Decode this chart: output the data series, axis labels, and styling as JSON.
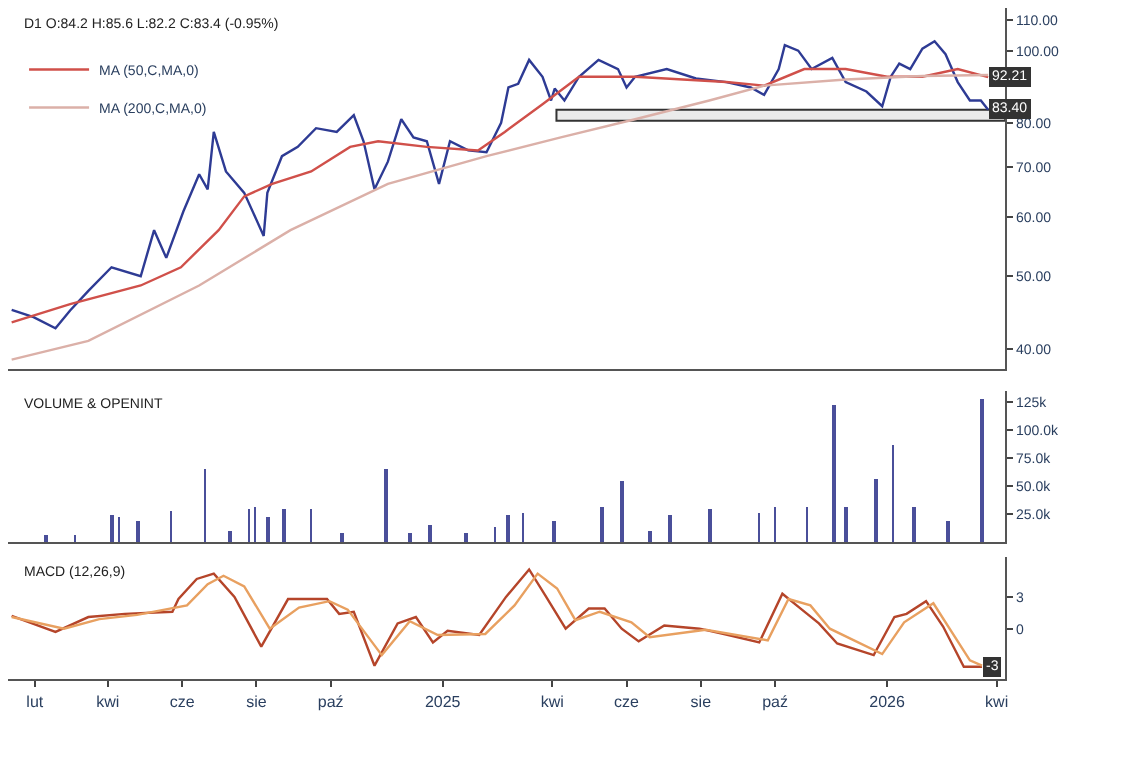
{
  "chart_data": [
    {
      "type": "line",
      "title": "D1 O:84.2 H:85.6 L:82.2 C:83.4 (-0.95%)",
      "log": true,
      "legend": "top left",
      "tick_labels": "y",
      "xlim": [
        "2024-01-10",
        "2026-04-08"
      ],
      "ylim": [
        37.6,
        114
      ],
      "yticks": [
        {
          "value": 40,
          "label": "40.00"
        },
        {
          "value": 50,
          "label": "50.00"
        },
        {
          "value": 60,
          "label": "60.00"
        },
        {
          "value": 70,
          "label": "70.00"
        },
        {
          "value": 80,
          "label": "80.00"
        },
        {
          "value": 100,
          "label": "100.00"
        },
        {
          "value": 110,
          "label": "110.00"
        }
      ],
      "bands": [
        {
          "axis": "y",
          "from": 80.6,
          "to": 83.4,
          "color": "#333333"
        }
      ],
      "annotations": [
        {
          "text": "92.21",
          "x": "2026-03-25",
          "y": 92.21
        },
        {
          "text": "83.40",
          "x": "2026-03-25",
          "y": 83.4
        }
      ],
      "series": [
        {
          "color": "#2e3b94",
          "x": [
            "2024-01-13",
            "2024-01-31",
            "2024-02-18",
            "2024-03-01",
            "2024-03-16",
            "2024-04-04",
            "2024-04-28",
            "2024-05-09",
            "2024-05-19",
            "2024-06-02",
            "2024-06-15",
            "2024-06-22",
            "2024-06-27",
            "2024-07-07",
            "2024-07-22",
            "2024-08-07",
            "2024-08-10",
            "2024-08-22",
            "2024-09-04",
            "2024-09-19",
            "2024-10-06",
            "2024-10-20",
            "2024-10-28",
            "2024-11-06",
            "2024-11-17",
            "2024-11-28",
            "2024-12-08",
            "2024-12-19",
            "2024-12-29",
            "2025-01-07",
            "2025-01-22",
            "2025-02-06",
            "2025-02-18",
            "2025-02-24",
            "2025-03-04",
            "2025-03-13",
            "2025-03-24",
            "2025-03-31",
            "2025-04-03",
            "2025-04-11",
            "2025-04-23",
            "2025-05-09",
            "2025-05-25",
            "2025-06-01",
            "2025-06-08",
            "2025-07-04",
            "2025-07-28",
            "2025-08-22",
            "2025-09-11",
            "2025-09-22",
            "2025-10-04",
            "2025-10-09",
            "2025-10-20",
            "2025-10-31",
            "2025-11-17",
            "2025-11-28",
            "2025-12-15",
            "2025-12-28",
            "2026-01-04",
            "2026-01-11",
            "2026-01-20",
            "2026-01-30",
            "2026-02-09",
            "2026-02-18",
            "2026-02-28",
            "2026-03-10",
            "2026-03-19",
            "2026-03-25"
          ],
          "values": [
            45.1,
            44.1,
            42.6,
            45.0,
            47.8,
            51.4,
            50.0,
            57.6,
            52.9,
            61.0,
            68.4,
            65.3,
            77.9,
            69.0,
            64.6,
            56.6,
            64.6,
            72.3,
            74.4,
            78.8,
            77.9,
            82.0,
            75.7,
            65.3,
            71.1,
            81.0,
            76.6,
            75.7,
            66.4,
            75.7,
            73.6,
            73.2,
            80.1,
            89.3,
            90.3,
            97.2,
            92.3,
            85.8,
            89.0,
            85.8,
            92.3,
            97.2,
            94.5,
            89.3,
            92.3,
            94.5,
            91.8,
            90.8,
            89.3,
            87.3,
            94.5,
            101.7,
            100.0,
            94.5,
            97.8,
            90.8,
            88.2,
            84.3,
            92.3,
            96.1,
            94.5,
            100.6,
            102.9,
            98.9,
            90.8,
            85.8,
            85.8,
            83.4
          ]
        },
        {
          "name": "MA (50,C,MA,0)",
          "color": "#d0504a",
          "x": [
            "2024-01-13",
            "2024-03-01",
            "2024-04-28",
            "2024-05-31",
            "2024-07-01",
            "2024-07-22",
            "2024-08-14",
            "2024-09-15",
            "2024-10-17",
            "2024-11-09",
            "2024-12-19",
            "2025-01-30",
            "2025-02-21",
            "2025-03-24",
            "2025-04-23",
            "2025-06-08",
            "2025-08-22",
            "2025-09-22",
            "2025-10-25",
            "2025-11-28",
            "2026-01-01",
            "2026-01-30",
            "2026-02-28",
            "2026-03-25"
          ],
          "values": [
            43.4,
            45.9,
            48.6,
            51.4,
            57.6,
            63.9,
            66.4,
            69.0,
            74.4,
            75.7,
            74.4,
            73.6,
            77.9,
            84.8,
            92.3,
            92.3,
            90.8,
            89.8,
            94.5,
            94.5,
            92.3,
            92.3,
            94.5,
            92.2
          ]
        },
        {
          "name": "MA (200,C,MA,0)",
          "color": "#dbb0a8",
          "x": [
            "2024-01-13",
            "2024-03-16",
            "2024-06-15",
            "2024-08-29",
            "2024-11-17",
            "2025-02-06",
            "2025-04-08",
            "2025-06-08",
            "2025-08-08",
            "2025-09-22",
            "2025-11-28",
            "2026-01-30",
            "2026-03-25"
          ],
          "values": [
            38.7,
            41.0,
            48.6,
            57.6,
            66.4,
            72.3,
            76.6,
            81.0,
            85.8,
            89.8,
            91.5,
            92.5,
            92.8
          ]
        }
      ]
    },
    {
      "type": "bar",
      "title": "VOLUME & OPENINT",
      "tick_labels": "y",
      "xlim": [
        "2024-01-10",
        "2026-04-08"
      ],
      "ylim": [
        0,
        135000
      ],
      "yticks": [
        {
          "value": 25000,
          "label": "25.0k"
        },
        {
          "value": 50000,
          "label": "50.0k"
        },
        {
          "value": 75000,
          "label": "75.0k"
        },
        {
          "value": 100000,
          "label": "100.0k"
        },
        {
          "value": 125000,
          "label": "125k"
        }
      ],
      "series": [
        {
          "color": "#4a4f9a",
          "x": [
            "2024-02-10",
            "2024-03-05",
            "2024-04-04",
            "2024-04-10",
            "2024-04-26",
            "2024-05-23",
            "2024-06-20",
            "2024-07-10",
            "2024-07-26",
            "2024-07-31",
            "2024-08-10",
            "2024-08-24",
            "2024-09-15",
            "2024-10-10",
            "2024-11-15",
            "2024-12-05",
            "2024-12-21",
            "2025-01-20",
            "2025-02-13",
            "2025-02-24",
            "2025-03-08",
            "2025-04-03",
            "2025-05-12",
            "2025-05-28",
            "2025-06-20",
            "2025-07-07",
            "2025-08-09",
            "2025-09-18",
            "2025-10-01",
            "2025-10-27",
            "2025-11-18",
            "2025-11-28",
            "2025-12-23",
            "2026-01-06",
            "2026-01-23",
            "2026-02-20",
            "2026-03-20"
          ],
          "values": [
            6000,
            7000,
            24000,
            22000,
            20000,
            29000,
            66000,
            10000,
            30000,
            32000,
            22000,
            30000,
            30000,
            9000,
            66000,
            8000,
            16000,
            9000,
            14000,
            24000,
            26000,
            20000,
            32000,
            54000,
            10000,
            25000,
            30000,
            26000,
            31000,
            32000,
            123000,
            32000,
            56000,
            87000,
            32000,
            20000,
            128000
          ]
        }
      ]
    },
    {
      "type": "line",
      "title": "MACD (12,26,9)",
      "xlim": [
        "2024-01-10",
        "2026-04-08"
      ],
      "ylim": [
        -4.8,
        6.8
      ],
      "yticks": [
        0,
        3
      ],
      "xticks": [
        {
          "value": "2024-02-01",
          "label": "lut"
        },
        {
          "value": "2024-04-01",
          "label": "kwi"
        },
        {
          "value": "2024-06-01",
          "label": "cze"
        },
        {
          "value": "2024-08-01",
          "label": "sie"
        },
        {
          "value": "2024-10-01",
          "label": "paź"
        },
        {
          "value": "2025-01-01",
          "label": "2025"
        },
        {
          "value": "2025-04-01",
          "label": "kwi"
        },
        {
          "value": "2025-06-01",
          "label": "cze"
        },
        {
          "value": "2025-08-01",
          "label": "sie"
        },
        {
          "value": "2025-10-01",
          "label": "paź"
        },
        {
          "value": "2026-01-01",
          "label": "2026"
        },
        {
          "value": "2026-04-01",
          "label": "kwi"
        }
      ],
      "annotations": [
        {
          "text": "-3",
          "x": "2026-03-20",
          "y": -3.6
        }
      ],
      "series": [
        {
          "color": "#b5452a",
          "x": [
            "2024-01-13",
            "2024-02-18",
            "2024-03-16",
            "2024-04-15",
            "2024-05-24",
            "2024-05-29",
            "2024-06-13",
            "2024-06-27",
            "2024-07-14",
            "2024-08-05",
            "2024-08-27",
            "2024-09-28",
            "2024-10-08",
            "2024-10-20",
            "2024-11-06",
            "2024-11-25",
            "2024-12-10",
            "2024-12-24",
            "2025-01-05",
            "2025-01-31",
            "2025-02-22",
            "2025-03-13",
            "2025-03-27",
            "2025-04-12",
            "2025-05-01",
            "2025-05-14",
            "2025-05-28",
            "2025-06-11",
            "2025-07-02",
            "2025-07-31",
            "2025-08-20",
            "2025-09-18",
            "2025-10-07",
            "2025-10-22",
            "2025-11-06",
            "2025-11-21",
            "2025-12-21",
            "2026-01-07",
            "2026-01-17",
            "2026-02-02",
            "2026-02-16",
            "2026-03-05",
            "2026-03-20"
          ],
          "values": [
            1.2,
            -0.3,
            1.1,
            1.4,
            1.6,
            2.8,
            4.7,
            5.2,
            3.0,
            -1.7,
            2.8,
            2.8,
            1.4,
            1.6,
            -3.5,
            0.5,
            1.1,
            -1.3,
            -0.2,
            -0.6,
            3.0,
            5.6,
            3.0,
            0.0,
            1.9,
            1.9,
            0.0,
            -1.2,
            0.3,
            0.0,
            -0.5,
            -1.3,
            3.3,
            1.9,
            0.5,
            -1.4,
            -2.5,
            1.1,
            1.4,
            2.6,
            0.2,
            -3.6,
            -3.6
          ]
        },
        {
          "color": "#e8a060",
          "x": [
            "2024-01-13",
            "2024-02-25",
            "2024-03-25",
            "2024-04-25",
            "2024-06-05",
            "2024-06-22",
            "2024-07-05",
            "2024-07-22",
            "2024-08-12",
            "2024-09-05",
            "2024-09-30",
            "2024-10-15",
            "2024-11-12",
            "2024-12-05",
            "2024-12-28",
            "2025-02-05",
            "2025-03-01",
            "2025-03-20",
            "2025-04-05",
            "2025-04-20",
            "2025-05-10",
            "2025-06-05",
            "2025-06-20",
            "2025-08-05",
            "2025-09-25",
            "2025-10-12",
            "2025-10-30",
            "2025-11-15",
            "2025-12-28",
            "2026-01-15",
            "2026-02-08",
            "2026-03-10",
            "2026-03-20"
          ],
          "values": [
            1.1,
            0.0,
            0.9,
            1.3,
            2.2,
            4.2,
            5.0,
            4.0,
            0.0,
            2.0,
            2.6,
            1.8,
            -2.5,
            0.7,
            -0.6,
            -0.5,
            2.2,
            5.2,
            3.8,
            0.8,
            1.6,
            0.6,
            -0.8,
            -0.1,
            -1.1,
            2.8,
            2.2,
            0.0,
            -2.4,
            0.6,
            2.4,
            -3.0,
            -3.5
          ]
        }
      ]
    }
  ]
}
